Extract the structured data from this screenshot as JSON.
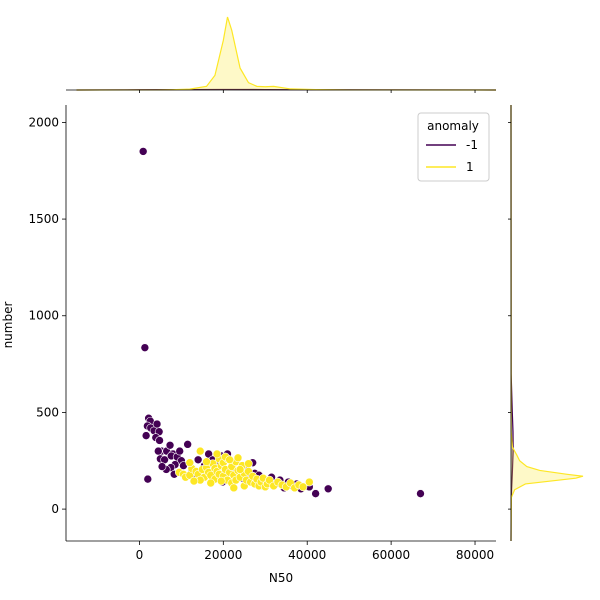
{
  "chart_data": {
    "type": "scatter",
    "subtype": "jointplot-with-marginal-kde",
    "xlabel": "N50",
    "ylabel": "number",
    "xlim": [
      -17500,
      85000
    ],
    "ylim": [
      -165,
      2090
    ],
    "xticks": [
      0,
      20000,
      40000,
      60000,
      80000
    ],
    "yticks": [
      0,
      500,
      1000,
      1500,
      2000
    ],
    "legend": {
      "title": "anomaly",
      "placement": "top-right",
      "entries": [
        "-1",
        "1"
      ]
    },
    "grid": false,
    "colors": {
      "-1": "#440154",
      "1": "#fde725"
    },
    "series": [
      {
        "name": "-1",
        "points": [
          [
            900,
            1850
          ],
          [
            1300,
            835
          ],
          [
            2000,
            155
          ],
          [
            2200,
            470
          ],
          [
            2600,
            455
          ],
          [
            1900,
            430
          ],
          [
            2700,
            420
          ],
          [
            1600,
            380
          ],
          [
            3500,
            405
          ],
          [
            4200,
            440
          ],
          [
            4700,
            400
          ],
          [
            3900,
            370
          ],
          [
            4800,
            355
          ],
          [
            5300,
            300
          ],
          [
            4500,
            300
          ],
          [
            5000,
            260
          ],
          [
            6000,
            255
          ],
          [
            6500,
            300
          ],
          [
            7300,
            330
          ],
          [
            8000,
            285
          ],
          [
            7600,
            275
          ],
          [
            9000,
            270
          ],
          [
            10000,
            250
          ],
          [
            11500,
            335
          ],
          [
            9600,
            300
          ],
          [
            8500,
            230
          ],
          [
            10500,
            225
          ],
          [
            7500,
            215
          ],
          [
            6400,
            205
          ],
          [
            5400,
            220
          ],
          [
            8300,
            180
          ],
          [
            12500,
            200
          ],
          [
            14000,
            255
          ],
          [
            15000,
            180
          ],
          [
            13000,
            170
          ],
          [
            16500,
            285
          ],
          [
            17500,
            255
          ],
          [
            18500,
            235
          ],
          [
            19500,
            275
          ],
          [
            21000,
            285
          ],
          [
            19800,
            140
          ],
          [
            23000,
            175
          ],
          [
            24500,
            160
          ],
          [
            26000,
            165
          ],
          [
            27500,
            185
          ],
          [
            27000,
            240
          ],
          [
            28500,
            175
          ],
          [
            29500,
            120
          ],
          [
            30500,
            140
          ],
          [
            31500,
            165
          ],
          [
            32500,
            130
          ],
          [
            33500,
            150
          ],
          [
            34500,
            110
          ],
          [
            35500,
            140
          ],
          [
            36500,
            120
          ],
          [
            37500,
            130
          ],
          [
            38500,
            105
          ],
          [
            40500,
            115
          ],
          [
            42000,
            80
          ],
          [
            45000,
            105
          ],
          [
            67000,
            80
          ],
          [
            22500,
            205
          ],
          [
            25500,
            210
          ],
          [
            15500,
            225
          ]
        ]
      },
      {
        "name": "1",
        "points": [
          [
            9500,
            190
          ],
          [
            10500,
            180
          ],
          [
            11000,
            165
          ],
          [
            12000,
            175
          ],
          [
            12500,
            210
          ],
          [
            13500,
            195
          ],
          [
            14000,
            180
          ],
          [
            14500,
            300
          ],
          [
            15000,
            205
          ],
          [
            15500,
            165
          ],
          [
            16000,
            215
          ],
          [
            16500,
            190
          ],
          [
            17000,
            175
          ],
          [
            17500,
            235
          ],
          [
            18000,
            210
          ],
          [
            18000,
            155
          ],
          [
            18500,
            195
          ],
          [
            19000,
            260
          ],
          [
            19000,
            180
          ],
          [
            19500,
            225
          ],
          [
            20000,
            240
          ],
          [
            20000,
            170
          ],
          [
            20500,
            205
          ],
          [
            21000,
            260
          ],
          [
            21000,
            150
          ],
          [
            21500,
            190
          ],
          [
            22000,
            220
          ],
          [
            22000,
            135
          ],
          [
            22500,
            175
          ],
          [
            23000,
            245
          ],
          [
            23000,
            150
          ],
          [
            23500,
            200
          ],
          [
            24000,
            165
          ],
          [
            24500,
            225
          ],
          [
            25000,
            185
          ],
          [
            25000,
            120
          ],
          [
            25500,
            150
          ],
          [
            26000,
            195
          ],
          [
            26500,
            140
          ],
          [
            27000,
            170
          ],
          [
            27500,
            130
          ],
          [
            28000,
            155
          ],
          [
            28500,
            120
          ],
          [
            29000,
            140
          ],
          [
            29500,
            160
          ],
          [
            30000,
            115
          ],
          [
            30500,
            130
          ],
          [
            31000,
            150
          ],
          [
            32000,
            120
          ],
          [
            33000,
            140
          ],
          [
            34000,
            125
          ],
          [
            35000,
            115
          ],
          [
            36000,
            135
          ],
          [
            37000,
            110
          ],
          [
            38000,
            125
          ],
          [
            39000,
            115
          ],
          [
            40500,
            140
          ],
          [
            16000,
            245
          ],
          [
            17000,
            135
          ],
          [
            18500,
            285
          ],
          [
            20500,
            270
          ],
          [
            19500,
            145
          ],
          [
            21500,
            255
          ],
          [
            24000,
            205
          ],
          [
            26000,
            235
          ],
          [
            22500,
            110
          ],
          [
            14500,
            150
          ],
          [
            13000,
            145
          ],
          [
            12000,
            240
          ],
          [
            23500,
            265
          ]
        ]
      }
    ],
    "marginal_x": {
      "type": "kde",
      "series": [
        {
          "name": "-1",
          "x": [
            -15000,
            0,
            10000,
            20000,
            30000,
            40000,
            60000,
            80000,
            85000
          ],
          "density": [
            0.0,
            0.003,
            0.006,
            0.008,
            0.006,
            0.004,
            0.002,
            0.0005,
            0.0
          ]
        },
        {
          "name": "1",
          "x": [
            -15000,
            4000,
            8000,
            12000,
            16000,
            18000,
            20000,
            21000,
            22000,
            24000,
            26000,
            28000,
            30000,
            32000,
            36000,
            42000,
            50000,
            85000
          ],
          "density": [
            0.0,
            0.001,
            0.004,
            0.012,
            0.05,
            0.2,
            0.68,
            1.0,
            0.82,
            0.3,
            0.1,
            0.05,
            0.045,
            0.05,
            0.015,
            0.005,
            0.001,
            0.0
          ]
        }
      ]
    },
    "marginal_y": {
      "type": "kde",
      "series": [
        {
          "name": "-1",
          "y": [
            -165,
            0,
            100,
            200,
            300,
            400,
            500,
            700,
            2090
          ],
          "density": [
            0.0,
            0.002,
            0.008,
            0.02,
            0.03,
            0.028,
            0.018,
            0.002,
            0.0
          ]
        },
        {
          "name": "1",
          "y": [
            -165,
            60,
            100,
            130,
            160,
            170,
            180,
            200,
            220,
            250,
            280,
            320,
            400,
            2090
          ],
          "density": [
            0.0,
            0.005,
            0.05,
            0.2,
            0.9,
            1.0,
            0.78,
            0.4,
            0.22,
            0.12,
            0.08,
            0.02,
            0.002,
            0.0
          ]
        }
      ]
    }
  }
}
